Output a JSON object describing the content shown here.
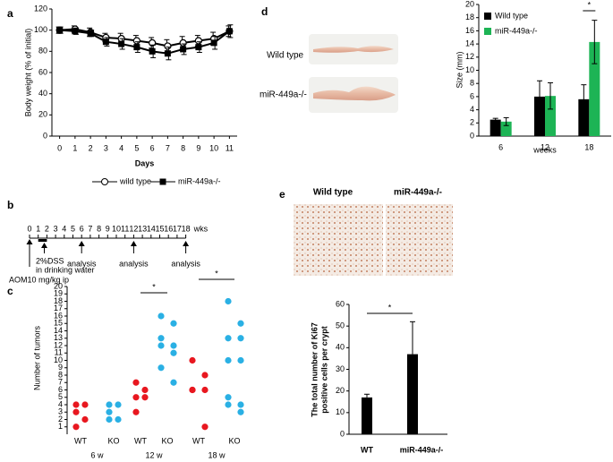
{
  "panel_labels": [
    "a",
    "b",
    "c",
    "d",
    "e"
  ],
  "chart_data": [
    {
      "type": "line",
      "ylabel": "Body weight (% of initial)",
      "xlabel": "Days",
      "x": [
        0,
        1,
        2,
        3,
        4,
        5,
        6,
        7,
        8,
        9,
        10,
        11
      ],
      "xlim": [
        -0.5,
        11.5
      ],
      "xticks": [
        0,
        1,
        2,
        3,
        4,
        5,
        6,
        7,
        8,
        9,
        10,
        11
      ],
      "ylim": [
        0,
        120
      ],
      "yticks": [
        0,
        20,
        40,
        60,
        80,
        100,
        120
      ],
      "series": [
        {
          "name": "wild type",
          "marker": "open-circle",
          "color": "#000000",
          "values": [
            100,
            101,
            98,
            93,
            92,
            90,
            88,
            85,
            88,
            90,
            92,
            99
          ],
          "errors": [
            3,
            3,
            4,
            4,
            5,
            5,
            5,
            6,
            6,
            5,
            6,
            5
          ]
        },
        {
          "name": "miR-449a-/-",
          "marker": "square",
          "color": "#000000",
          "values": [
            100,
            99,
            97,
            89,
            87,
            84,
            80,
            78,
            82,
            84,
            88,
            99
          ],
          "errors": [
            3,
            3,
            3,
            4,
            5,
            5,
            6,
            6,
            5,
            5,
            6,
            6
          ]
        }
      ]
    },
    {
      "type": "strip",
      "ylabel": "Number of tumors",
      "categories": [
        "WT",
        "KO",
        "WT",
        "KO",
        "WT",
        "KO"
      ],
      "groups": [
        "6 w",
        "12 w",
        "18 w"
      ],
      "colors": [
        "#e8171f",
        "#2ab0e4",
        "#e8171f",
        "#2ab0e4",
        "#e8171f",
        "#2ab0e4"
      ],
      "points": [
        [
          4,
          4,
          3,
          2,
          1
        ],
        [
          4,
          4,
          3,
          2,
          2
        ],
        [
          7,
          6,
          5,
          5,
          3
        ],
        [
          16,
          15,
          13,
          12,
          12,
          11,
          9,
          7
        ],
        [
          10,
          8,
          6,
          6,
          6,
          1
        ],
        [
          18,
          15,
          13,
          13,
          10,
          10,
          5,
          4,
          4,
          3
        ]
      ],
      "ylim": [
        0,
        20
      ],
      "yticks": [
        1,
        2,
        3,
        4,
        5,
        6,
        7,
        8,
        9,
        10,
        11,
        12,
        13,
        14,
        15,
        16,
        17,
        18,
        19,
        20
      ],
      "annotations": [
        "*",
        "*"
      ]
    },
    {
      "type": "bar",
      "ylabel": "Size (mm)",
      "xlabel": "weeks",
      "categories": [
        "6",
        "12",
        "18"
      ],
      "ylim": [
        0,
        20
      ],
      "yticks": [
        0,
        2,
        4,
        6,
        8,
        10,
        12,
        14,
        16,
        18,
        20
      ],
      "legend": "upper-left",
      "series": [
        {
          "name": "Wild type",
          "color": "#000000",
          "values": [
            2.5,
            6,
            5.6
          ],
          "errors": [
            0.2,
            2.4,
            2.2
          ]
        },
        {
          "name": "miR-449a-/-",
          "color": "#1db455",
          "values": [
            2.2,
            6.1,
            14.3
          ],
          "errors": [
            0.6,
            2,
            3.3
          ]
        }
      ],
      "annotations": [
        "*"
      ]
    },
    {
      "type": "bar",
      "ylabel": [
        "The total number of Ki67",
        "positive cells per crypt"
      ],
      "categories": [
        "WT",
        "miR-449a-/-"
      ],
      "color": "#000000",
      "values": [
        17,
        37
      ],
      "errors": [
        1.5,
        15
      ],
      "ylim": [
        0,
        60
      ],
      "yticks": [
        0,
        10,
        20,
        30,
        40,
        50,
        60
      ],
      "annotations": [
        "*"
      ]
    }
  ],
  "timeline": {
    "ticks": [
      0,
      1,
      2,
      3,
      4,
      5,
      6,
      7,
      8,
      9,
      10,
      11,
      12,
      13,
      14,
      15,
      16,
      17,
      18
    ],
    "unit": "wks",
    "dss": [
      "2%DSS",
      "in drinking water"
    ],
    "analysis_weeks": [
      6,
      12,
      18
    ],
    "analysis": [
      "analysis",
      "analysis",
      "analysis"
    ],
    "aom": "AOM10 mg/kg ip"
  },
  "photos": {
    "d": [
      "Wild type",
      "miR-449a-/-"
    ],
    "e": [
      "Wild type",
      "miR-449a-/-"
    ]
  }
}
